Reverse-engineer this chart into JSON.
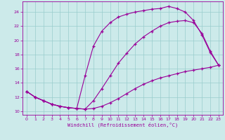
{
  "bg_color": "#cceaea",
  "grid_color": "#99cccc",
  "line_color": "#990099",
  "xlabel": "Windchill (Refroidissement éolien,°C)",
  "xlim": [
    -0.5,
    23.5
  ],
  "ylim": [
    9.5,
    25.5
  ],
  "yticks": [
    10,
    12,
    14,
    16,
    18,
    20,
    22,
    24
  ],
  "xticks": [
    0,
    1,
    2,
    3,
    4,
    5,
    6,
    7,
    8,
    9,
    10,
    11,
    12,
    13,
    14,
    15,
    16,
    17,
    18,
    19,
    20,
    21,
    22,
    23
  ],
  "curve1_x": [
    0,
    1,
    2,
    3,
    4,
    5,
    6,
    7,
    8,
    9,
    10,
    11,
    12,
    13,
    14,
    15,
    16,
    17,
    18,
    19,
    20,
    21,
    22,
    23
  ],
  "curve1_y": [
    12.8,
    12.0,
    11.5,
    11.0,
    10.7,
    10.5,
    10.4,
    10.3,
    10.4,
    10.7,
    11.2,
    11.8,
    12.5,
    13.2,
    13.8,
    14.3,
    14.7,
    15.0,
    15.3,
    15.6,
    15.8,
    16.0,
    16.2,
    16.5
  ],
  "curve2_x": [
    0,
    1,
    2,
    3,
    4,
    5,
    6,
    7,
    8,
    9,
    10,
    11,
    12,
    13,
    14,
    15,
    16,
    17,
    18,
    19,
    20,
    21,
    22,
    23
  ],
  "curve2_y": [
    12.8,
    12.0,
    11.5,
    11.0,
    10.7,
    10.5,
    10.4,
    15.0,
    19.2,
    21.3,
    22.5,
    23.3,
    23.7,
    24.0,
    24.2,
    24.4,
    24.5,
    24.8,
    24.5,
    24.0,
    22.8,
    20.8,
    18.3,
    16.5
  ],
  "curve3_x": [
    0,
    1,
    2,
    3,
    4,
    5,
    6,
    7,
    8,
    9,
    10,
    11,
    12,
    13,
    14,
    15,
    16,
    17,
    18,
    19,
    20,
    21,
    22,
    23
  ],
  "curve3_y": [
    12.8,
    12.0,
    11.5,
    11.0,
    10.7,
    10.5,
    10.4,
    10.3,
    11.5,
    13.2,
    15.0,
    16.8,
    18.2,
    19.5,
    20.5,
    21.3,
    22.0,
    22.5,
    22.7,
    22.8,
    22.5,
    21.0,
    18.5,
    16.5
  ]
}
